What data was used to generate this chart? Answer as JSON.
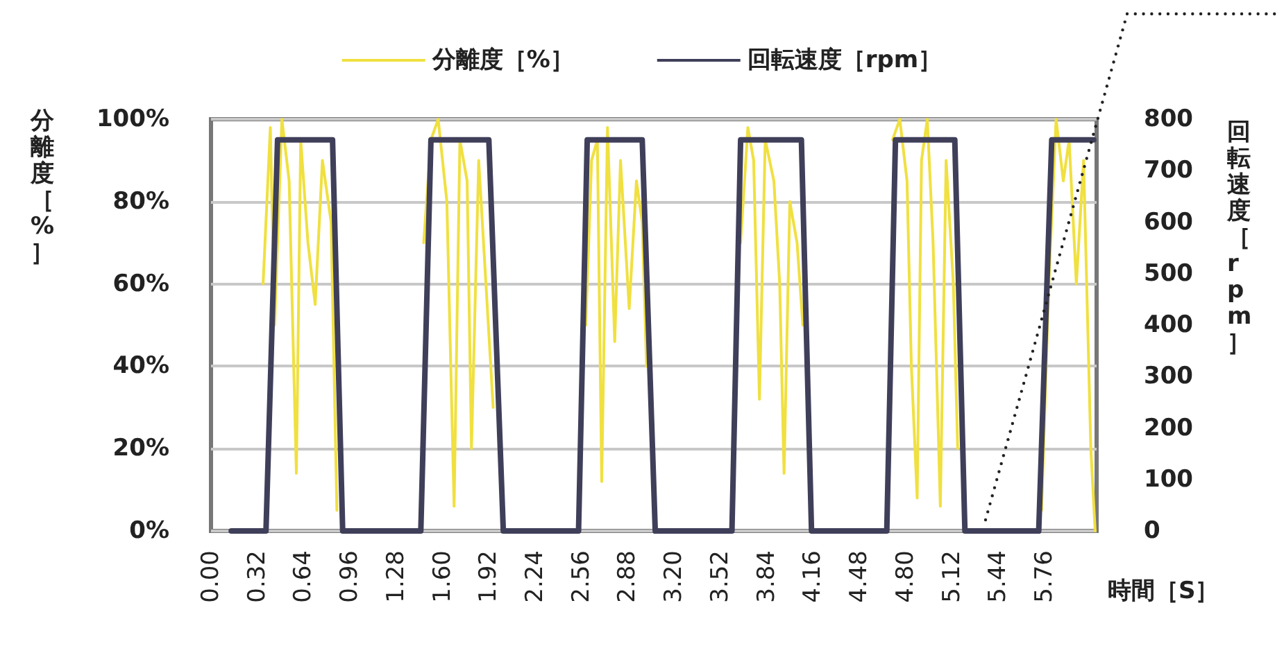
{
  "chart_data": {
    "type": "line",
    "xlabel": "時間［S］",
    "ylabel": "分離度［%］",
    "y2label": "回転速度［rpm］",
    "series": [
      {
        "name": "分離度［%］",
        "color": "#f0e040",
        "axis": "y",
        "x": [
          0.36,
          0.41,
          0.44,
          0.49,
          0.54,
          0.59,
          0.62,
          0.67,
          0.72,
          0.77,
          0.83,
          0.87,
          1.2,
          1.47,
          1.52,
          1.57,
          1.63,
          1.68,
          1.72,
          1.77,
          1.8,
          1.85,
          1.9,
          1.95,
          2.3,
          2.59,
          2.63,
          2.67,
          2.7,
          2.74,
          2.79,
          2.83,
          2.89,
          2.94,
          2.98,
          3.01,
          3.3,
          3.66,
          3.71,
          3.75,
          3.79,
          3.83,
          3.89,
          3.93,
          3.96,
          4.0,
          4.05,
          4.09,
          4.4,
          4.71,
          4.76,
          4.81,
          4.84,
          4.88,
          4.91,
          4.95,
          4.99,
          5.04,
          5.08,
          5.13,
          5.16,
          5.5,
          5.74,
          5.79,
          5.84,
          5.89,
          5.93,
          5.98,
          6.03,
          6.08,
          6.11
        ],
        "values": [
          60,
          98,
          50,
          100,
          85,
          14,
          95,
          70,
          55,
          90,
          75,
          5,
          null,
          70,
          95,
          100,
          80,
          6,
          95,
          85,
          20,
          90,
          60,
          30,
          null,
          50,
          90,
          95,
          12,
          98,
          46,
          90,
          54,
          85,
          75,
          40,
          null,
          70,
          98,
          90,
          32,
          95,
          85,
          60,
          14,
          80,
          70,
          50,
          null,
          95,
          100,
          85,
          40,
          8,
          90,
          100,
          70,
          6,
          90,
          60,
          20,
          null,
          5,
          60,
          100,
          85,
          95,
          60,
          90,
          20,
          0
        ]
      },
      {
        "name": "回転速度［rpm］",
        "color": "#3f3f5a",
        "axis": "y2",
        "x": [
          0.14,
          0.38,
          0.46,
          0.84,
          0.91,
          1.45,
          1.52,
          1.92,
          2.02,
          2.54,
          2.6,
          2.98,
          3.07,
          3.6,
          3.66,
          4.08,
          4.15,
          4.67,
          4.73,
          5.14,
          5.21,
          5.72,
          5.81,
          6.1
        ],
        "values": [
          0,
          0,
          760,
          760,
          0,
          0,
          760,
          760,
          0,
          0,
          760,
          760,
          0,
          0,
          760,
          760,
          0,
          0,
          760,
          760,
          0,
          0,
          760,
          760
        ]
      }
    ],
    "xlim": [
      0,
      6.12
    ],
    "xticks": [
      {
        "value": 0,
        "label": "0.00"
      },
      {
        "value": 0.32,
        "label": "0.32"
      },
      {
        "value": 0.64,
        "label": "0.64"
      },
      {
        "value": 0.96,
        "label": "0.96"
      },
      {
        "value": 1.28,
        "label": "1.28"
      },
      {
        "value": 1.6,
        "label": "1.60"
      },
      {
        "value": 1.92,
        "label": "1.92"
      },
      {
        "value": 2.24,
        "label": "2.24"
      },
      {
        "value": 2.56,
        "label": "2.56"
      },
      {
        "value": 2.88,
        "label": "2.88"
      },
      {
        "value": 3.2,
        "label": "3.20"
      },
      {
        "value": 3.52,
        "label": "3.52"
      },
      {
        "value": 3.84,
        "label": "3.84"
      },
      {
        "value": 4.16,
        "label": "4.16"
      },
      {
        "value": 4.48,
        "label": "4.48"
      },
      {
        "value": 4.8,
        "label": "4.80"
      },
      {
        "value": 5.12,
        "label": "5.12"
      },
      {
        "value": 5.44,
        "label": "5.44"
      },
      {
        "value": 5.76,
        "label": "5.76"
      }
    ],
    "ylim": [
      0,
      100
    ],
    "yticks": [
      {
        "value": 0,
        "label": "0%"
      },
      {
        "value": 20,
        "label": "20%"
      },
      {
        "value": 40,
        "label": "40%"
      },
      {
        "value": 60,
        "label": "60%"
      },
      {
        "value": 80,
        "label": "80%"
      },
      {
        "value": 100,
        "label": "100%"
      }
    ],
    "y2lim": [
      0,
      800
    ],
    "y2ticks": [
      0,
      100,
      200,
      300,
      400,
      500,
      600,
      700,
      800
    ],
    "grid": "y",
    "legend": "top",
    "marker": "none",
    "line_style": "solid"
  }
}
